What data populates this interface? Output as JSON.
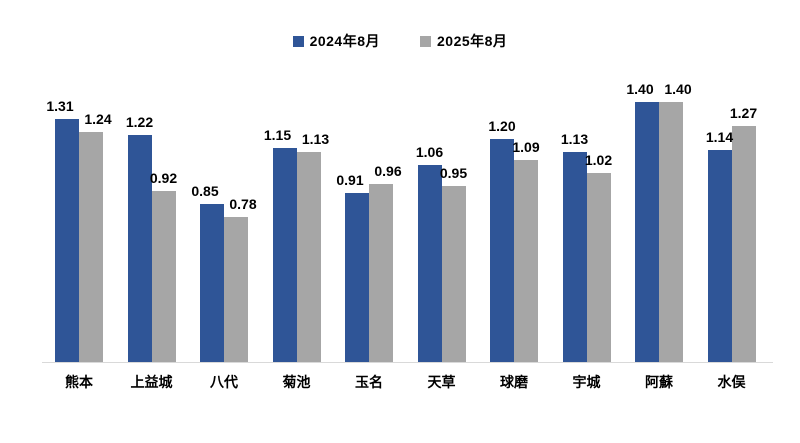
{
  "legend": {
    "items": [
      {
        "label": "2024年8月",
        "color": "#2F5597"
      },
      {
        "label": "2025年8月",
        "color": "#A6A6A6"
      }
    ]
  },
  "chart_data": {
    "type": "bar",
    "title": "",
    "xlabel": "",
    "ylabel": "",
    "categories": [
      "熊本",
      "上益城",
      "八代",
      "菊池",
      "玉名",
      "天草",
      "球磨",
      "宇城",
      "阿蘇",
      "水俣"
    ],
    "series": [
      {
        "name": "2024年8月",
        "color": "#2F5597",
        "values": [
          1.31,
          1.22,
          0.85,
          1.15,
          0.91,
          1.06,
          1.2,
          1.13,
          1.4,
          1.14
        ]
      },
      {
        "name": "2025年8月",
        "color": "#A6A6A6",
        "values": [
          1.24,
          0.92,
          0.78,
          1.13,
          0.96,
          0.95,
          1.09,
          1.02,
          1.4,
          1.27
        ]
      }
    ],
    "value_labels": true,
    "value_label_decimals": 2,
    "ylim": [
      0,
      1.4
    ],
    "grid": false,
    "y_axis_visible": false,
    "axis_line_color": "#D9D9D9",
    "legend_position": "top-center",
    "background_color": "#FFFFFF",
    "text_color": "#000000"
  }
}
